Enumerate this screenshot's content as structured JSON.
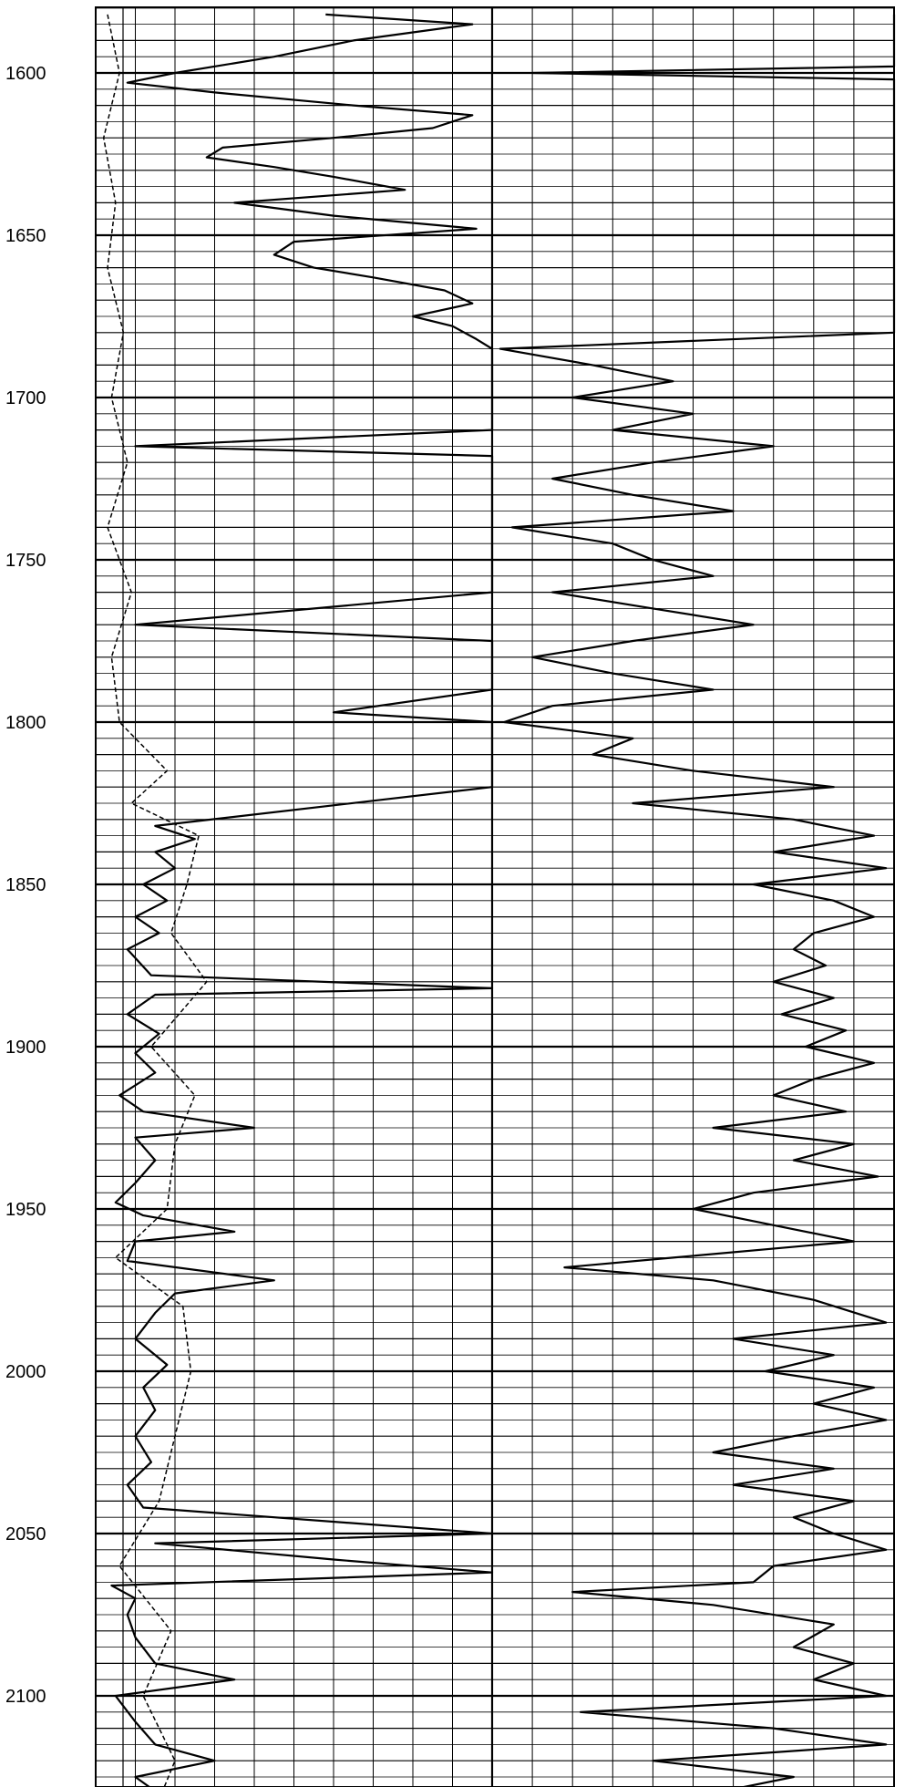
{
  "chart_data": {
    "type": "line",
    "title": "",
    "xlabel": "",
    "ylabel": "",
    "y_axis": {
      "orientation": "depth-down",
      "ylim": [
        1580,
        2135
      ],
      "tick_labels": [
        "1600",
        "1650",
        "1700",
        "1750",
        "1800",
        "1850",
        "1900",
        "1950",
        "2000",
        "2050",
        "2100"
      ],
      "tick_values": [
        1600,
        1650,
        1700,
        1750,
        1800,
        1850,
        1900,
        1950,
        2000,
        2050,
        2100
      ]
    },
    "grid": true,
    "tracks": [
      {
        "name": "",
        "track": "left",
        "xlim": [
          0,
          10
        ],
        "series": [
          {
            "style": "solid",
            "points": [
              [
                1582,
                5.8
              ],
              [
                1585,
                9.5
              ],
              [
                1590,
                6.5
              ],
              [
                1595,
                4.5
              ],
              [
                1600,
                2.0
              ],
              [
                1603,
                0.8
              ],
              [
                1606,
                3.0
              ],
              [
                1610,
                6.5
              ],
              [
                1613,
                9.5
              ],
              [
                1617,
                8.5
              ],
              [
                1620,
                6.0
              ],
              [
                1623,
                3.2
              ],
              [
                1626,
                2.8
              ],
              [
                1629,
                4.5
              ],
              [
                1632,
                6.0
              ],
              [
                1636,
                7.8
              ],
              [
                1640,
                3.5
              ],
              [
                1644,
                6.0
              ],
              [
                1648,
                9.6
              ],
              [
                1652,
                5.0
              ],
              [
                1656,
                4.5
              ],
              [
                1660,
                5.5
              ],
              [
                1663,
                7.0
              ],
              [
                1667,
                8.8
              ],
              [
                1671,
                9.5
              ],
              [
                1675,
                8.0
              ],
              [
                1678,
                9.0
              ],
              [
                1682,
                9.6
              ],
              [
                1685,
                10.0
              ],
              [
                1690,
                10.0
              ],
              [
                1700,
                10.0
              ],
              [
                1710,
                10.0
              ],
              [
                1715,
                1.0
              ],
              [
                1718,
                10.0
              ],
              [
                1730,
                10.0
              ],
              [
                1740,
                10.0
              ],
              [
                1750,
                10.0
              ],
              [
                1760,
                10.0
              ],
              [
                1770,
                1.0
              ],
              [
                1775,
                10.0
              ],
              [
                1790,
                10.0
              ],
              [
                1797,
                6.0
              ],
              [
                1800,
                10.0
              ],
              [
                1812,
                10.0
              ],
              [
                1820,
                10.0
              ],
              [
                1832,
                1.5
              ],
              [
                1836,
                2.5
              ],
              [
                1840,
                1.5
              ],
              [
                1845,
                2.0
              ],
              [
                1850,
                1.2
              ],
              [
                1855,
                1.8
              ],
              [
                1860,
                1.0
              ],
              [
                1865,
                1.6
              ],
              [
                1870,
                0.8
              ],
              [
                1878,
                1.4
              ],
              [
                1882,
                10.0
              ],
              [
                1884,
                1.5
              ],
              [
                1890,
                0.8
              ],
              [
                1896,
                1.6
              ],
              [
                1902,
                1.0
              ],
              [
                1908,
                1.5
              ],
              [
                1915,
                0.6
              ],
              [
                1920,
                1.2
              ],
              [
                1925,
                4.0
              ],
              [
                1928,
                1.0
              ],
              [
                1935,
                1.5
              ],
              [
                1942,
                1.0
              ],
              [
                1948,
                0.5
              ],
              [
                1952,
                1.2
              ],
              [
                1957,
                3.5
              ],
              [
                1960,
                1.0
              ],
              [
                1966,
                0.8
              ],
              [
                1972,
                4.5
              ],
              [
                1976,
                2.0
              ],
              [
                1982,
                1.5
              ],
              [
                1990,
                1.0
              ],
              [
                1998,
                1.8
              ],
              [
                2005,
                1.2
              ],
              [
                2012,
                1.5
              ],
              [
                2020,
                1.0
              ],
              [
                2028,
                1.4
              ],
              [
                2035,
                0.8
              ],
              [
                2042,
                1.2
              ],
              [
                2050,
                10.0
              ],
              [
                2053,
                1.5
              ],
              [
                2058,
                6.0
              ],
              [
                2062,
                10.0
              ],
              [
                2066,
                0.4
              ],
              [
                2070,
                1.0
              ],
              [
                2075,
                0.8
              ],
              [
                2082,
                1.0
              ],
              [
                2090,
                1.5
              ],
              [
                2095,
                3.5
              ],
              [
                2100,
                0.5
              ],
              [
                2108,
                1.0
              ],
              [
                2115,
                1.5
              ],
              [
                2120,
                3.0
              ],
              [
                2125,
                1.0
              ],
              [
                2132,
                1.8
              ]
            ]
          },
          {
            "style": "dashed",
            "points": [
              [
                1582,
                0.3
              ],
              [
                1600,
                0.6
              ],
              [
                1620,
                0.2
              ],
              [
                1640,
                0.5
              ],
              [
                1660,
                0.3
              ],
              [
                1680,
                0.7
              ],
              [
                1700,
                0.4
              ],
              [
                1720,
                0.8
              ],
              [
                1740,
                0.3
              ],
              [
                1760,
                0.9
              ],
              [
                1780,
                0.4
              ],
              [
                1800,
                0.6
              ],
              [
                1815,
                1.8
              ],
              [
                1825,
                0.9
              ],
              [
                1835,
                2.6
              ],
              [
                1850,
                2.3
              ],
              [
                1865,
                1.9
              ],
              [
                1880,
                2.8
              ],
              [
                1900,
                1.4
              ],
              [
                1915,
                2.5
              ],
              [
                1930,
                2.0
              ],
              [
                1950,
                1.8
              ],
              [
                1965,
                0.5
              ],
              [
                1980,
                2.2
              ],
              [
                2000,
                2.4
              ],
              [
                2020,
                2.0
              ],
              [
                2040,
                1.6
              ],
              [
                2060,
                0.6
              ],
              [
                2080,
                1.9
              ],
              [
                2100,
                1.2
              ],
              [
                2120,
                2.0
              ],
              [
                2132,
                1.6
              ]
            ]
          }
        ]
      },
      {
        "name": "",
        "track": "right",
        "xlim": [
          0,
          10
        ],
        "series": [
          {
            "style": "solid",
            "points": [
              [
                1582,
                10.0
              ],
              [
                1598,
                10.0
              ],
              [
                1600,
                1.0
              ],
              [
                1602,
                10.0
              ],
              [
                1680,
                10.0
              ],
              [
                1685,
                0.2
              ],
              [
                1690,
                2.5
              ],
              [
                1695,
                4.5
              ],
              [
                1700,
                2.0
              ],
              [
                1705,
                5.0
              ],
              [
                1710,
                3.0
              ],
              [
                1715,
                7.0
              ],
              [
                1720,
                4.0
              ],
              [
                1725,
                1.5
              ],
              [
                1730,
                3.5
              ],
              [
                1735,
                6.0
              ],
              [
                1740,
                0.5
              ],
              [
                1745,
                3.0
              ],
              [
                1750,
                4.0
              ],
              [
                1755,
                5.5
              ],
              [
                1760,
                1.5
              ],
              [
                1765,
                4.0
              ],
              [
                1770,
                6.5
              ],
              [
                1775,
                3.5
              ],
              [
                1780,
                1.0
              ],
              [
                1785,
                3.0
              ],
              [
                1790,
                5.5
              ],
              [
                1795,
                1.5
              ],
              [
                1800,
                0.3
              ],
              [
                1805,
                3.5
              ],
              [
                1810,
                2.5
              ],
              [
                1815,
                5.0
              ],
              [
                1820,
                8.5
              ],
              [
                1825,
                3.5
              ],
              [
                1830,
                7.5
              ],
              [
                1835,
                9.5
              ],
              [
                1840,
                7.0
              ],
              [
                1845,
                9.8
              ],
              [
                1850,
                6.5
              ],
              [
                1855,
                8.5
              ],
              [
                1860,
                9.5
              ],
              [
                1865,
                8.0
              ],
              [
                1870,
                7.5
              ],
              [
                1875,
                8.3
              ],
              [
                1880,
                7.0
              ],
              [
                1885,
                8.5
              ],
              [
                1890,
                7.2
              ],
              [
                1895,
                8.8
              ],
              [
                1900,
                7.8
              ],
              [
                1905,
                9.5
              ],
              [
                1910,
                8.0
              ],
              [
                1915,
                7.0
              ],
              [
                1920,
                8.8
              ],
              [
                1925,
                5.5
              ],
              [
                1930,
                9.0
              ],
              [
                1935,
                7.5
              ],
              [
                1940,
                9.6
              ],
              [
                1945,
                6.5
              ],
              [
                1950,
                5.0
              ],
              [
                1955,
                7.0
              ],
              [
                1960,
                9.0
              ],
              [
                1965,
                4.5
              ],
              [
                1968,
                1.8
              ],
              [
                1972,
                5.5
              ],
              [
                1978,
                8.0
              ],
              [
                1985,
                9.8
              ],
              [
                1990,
                6.0
              ],
              [
                1995,
                8.5
              ],
              [
                2000,
                6.8
              ],
              [
                2005,
                9.5
              ],
              [
                2010,
                8.0
              ],
              [
                2015,
                9.8
              ],
              [
                2020,
                7.5
              ],
              [
                2025,
                5.5
              ],
              [
                2030,
                8.5
              ],
              [
                2035,
                6.0
              ],
              [
                2040,
                9.0
              ],
              [
                2045,
                7.5
              ],
              [
                2050,
                8.5
              ],
              [
                2055,
                9.8
              ],
              [
                2060,
                7.0
              ],
              [
                2065,
                6.5
              ],
              [
                2068,
                2.0
              ],
              [
                2072,
                5.5
              ],
              [
                2078,
                8.5
              ],
              [
                2085,
                7.5
              ],
              [
                2090,
                9.0
              ],
              [
                2095,
                8.0
              ],
              [
                2100,
                9.8
              ],
              [
                2105,
                2.2
              ],
              [
                2110,
                7.0
              ],
              [
                2115,
                9.8
              ],
              [
                2120,
                4.0
              ],
              [
                2125,
                7.5
              ],
              [
                2130,
                5.5
              ],
              [
                2134,
                8.0
              ]
            ]
          }
        ]
      }
    ]
  }
}
